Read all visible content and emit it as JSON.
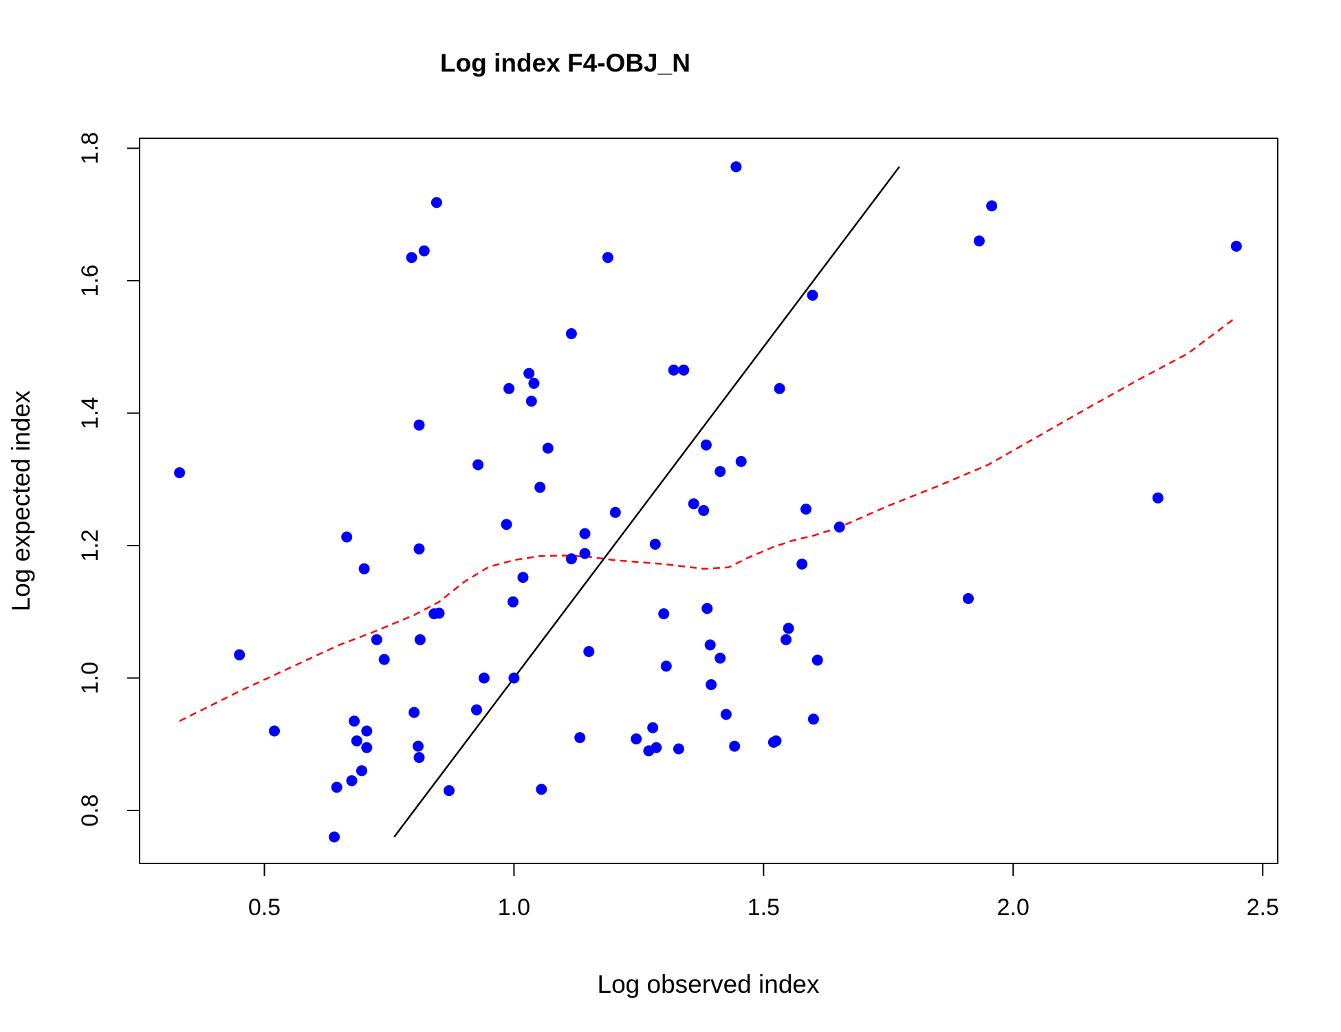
{
  "chart_data": {
    "type": "scatter",
    "title": "Log index F4-OBJ_N",
    "xlabel": "Log observed index",
    "ylabel": "Log expected index",
    "xlim": [
      0.25,
      2.53
    ],
    "ylim": [
      0.72,
      1.815
    ],
    "xticks": [
      0.5,
      1.0,
      1.5,
      2.0,
      2.5
    ],
    "xtick_labels": [
      "0.5",
      "1.0",
      "1.5",
      "2.0",
      "2.5"
    ],
    "yticks": [
      0.8,
      1.0,
      1.2,
      1.4,
      1.6,
      1.8
    ],
    "ytick_labels": [
      "0.8",
      "1.0",
      "1.2",
      "1.4",
      "1.6",
      "1.8"
    ],
    "grid": false,
    "legend": "none",
    "colors": {
      "points": "#0000FF",
      "identity_line": "#000000",
      "smooth_line": "#FF0000"
    },
    "points": [
      [
        0.33,
        1.31
      ],
      [
        0.45,
        1.035
      ],
      [
        0.52,
        0.92
      ],
      [
        0.64,
        0.76
      ],
      [
        0.645,
        0.835
      ],
      [
        0.665,
        1.213
      ],
      [
        0.675,
        0.845
      ],
      [
        0.68,
        0.935
      ],
      [
        0.685,
        0.905
      ],
      [
        0.695,
        0.86
      ],
      [
        0.7,
        1.165
      ],
      [
        0.705,
        0.92
      ],
      [
        0.705,
        0.895
      ],
      [
        0.725,
        1.058
      ],
      [
        0.74,
        1.028
      ],
      [
        0.795,
        1.635
      ],
      [
        0.8,
        0.948
      ],
      [
        0.808,
        0.897
      ],
      [
        0.81,
        0.88
      ],
      [
        0.81,
        1.195
      ],
      [
        0.81,
        1.382
      ],
      [
        0.812,
        1.058
      ],
      [
        0.82,
        1.645
      ],
      [
        0.84,
        1.097
      ],
      [
        0.845,
        1.718
      ],
      [
        0.85,
        1.098
      ],
      [
        0.87,
        0.83
      ],
      [
        0.925,
        0.952
      ],
      [
        0.928,
        1.322
      ],
      [
        0.94,
        1.0
      ],
      [
        0.985,
        1.232
      ],
      [
        0.99,
        1.437
      ],
      [
        0.998,
        1.115
      ],
      [
        1.0,
        1.0
      ],
      [
        1.018,
        1.152
      ],
      [
        1.03,
        1.46
      ],
      [
        1.035,
        1.418
      ],
      [
        1.04,
        1.445
      ],
      [
        1.052,
        1.288
      ],
      [
        1.055,
        0.832
      ],
      [
        1.068,
        1.347
      ],
      [
        1.115,
        1.52
      ],
      [
        1.115,
        1.18
      ],
      [
        1.132,
        0.91
      ],
      [
        1.142,
        1.218
      ],
      [
        1.142,
        1.188
      ],
      [
        1.15,
        1.04
      ],
      [
        1.188,
        1.635
      ],
      [
        1.203,
        1.25
      ],
      [
        1.245,
        0.908
      ],
      [
        1.27,
        0.89
      ],
      [
        1.278,
        0.925
      ],
      [
        1.283,
        1.202
      ],
      [
        1.285,
        0.895
      ],
      [
        1.3,
        1.097
      ],
      [
        1.305,
        1.018
      ],
      [
        1.32,
        1.465
      ],
      [
        1.33,
        0.893
      ],
      [
        1.34,
        1.465
      ],
      [
        1.36,
        1.263
      ],
      [
        1.38,
        1.253
      ],
      [
        1.385,
        1.352
      ],
      [
        1.387,
        1.105
      ],
      [
        1.393,
        1.05
      ],
      [
        1.395,
        0.99
      ],
      [
        1.413,
        1.312
      ],
      [
        1.413,
        1.03
      ],
      [
        1.425,
        0.945
      ],
      [
        1.442,
        0.897
      ],
      [
        1.445,
        1.772
      ],
      [
        1.455,
        1.327
      ],
      [
        1.52,
        0.903
      ],
      [
        1.525,
        0.905
      ],
      [
        1.532,
        1.437
      ],
      [
        1.545,
        1.058
      ],
      [
        1.55,
        1.075
      ],
      [
        1.577,
        1.172
      ],
      [
        1.585,
        1.255
      ],
      [
        1.598,
        1.578
      ],
      [
        1.6,
        0.938
      ],
      [
        1.608,
        1.027
      ],
      [
        1.652,
        1.228
      ],
      [
        1.91,
        1.12
      ],
      [
        1.932,
        1.66
      ],
      [
        1.957,
        1.713
      ],
      [
        2.29,
        1.272
      ],
      [
        2.447,
        1.652
      ]
    ],
    "identity_line": {
      "x": [
        0.76,
        1.772
      ],
      "y": [
        0.76,
        1.772
      ]
    },
    "smooth_line": {
      "x": [
        0.33,
        0.45,
        0.55,
        0.65,
        0.72,
        0.8,
        0.85,
        0.9,
        0.95,
        1.0,
        1.05,
        1.1,
        1.15,
        1.2,
        1.3,
        1.38,
        1.43,
        1.47,
        1.52,
        1.56,
        1.6,
        1.65,
        1.75,
        1.85,
        1.95,
        2.05,
        2.15,
        2.25,
        2.35,
        2.447
      ],
      "y": [
        0.935,
        0.98,
        1.015,
        1.05,
        1.07,
        1.095,
        1.115,
        1.145,
        1.168,
        1.178,
        1.184,
        1.185,
        1.183,
        1.178,
        1.172,
        1.165,
        1.167,
        1.182,
        1.198,
        1.208,
        1.215,
        1.227,
        1.26,
        1.29,
        1.322,
        1.365,
        1.408,
        1.45,
        1.49,
        1.545
      ]
    }
  }
}
